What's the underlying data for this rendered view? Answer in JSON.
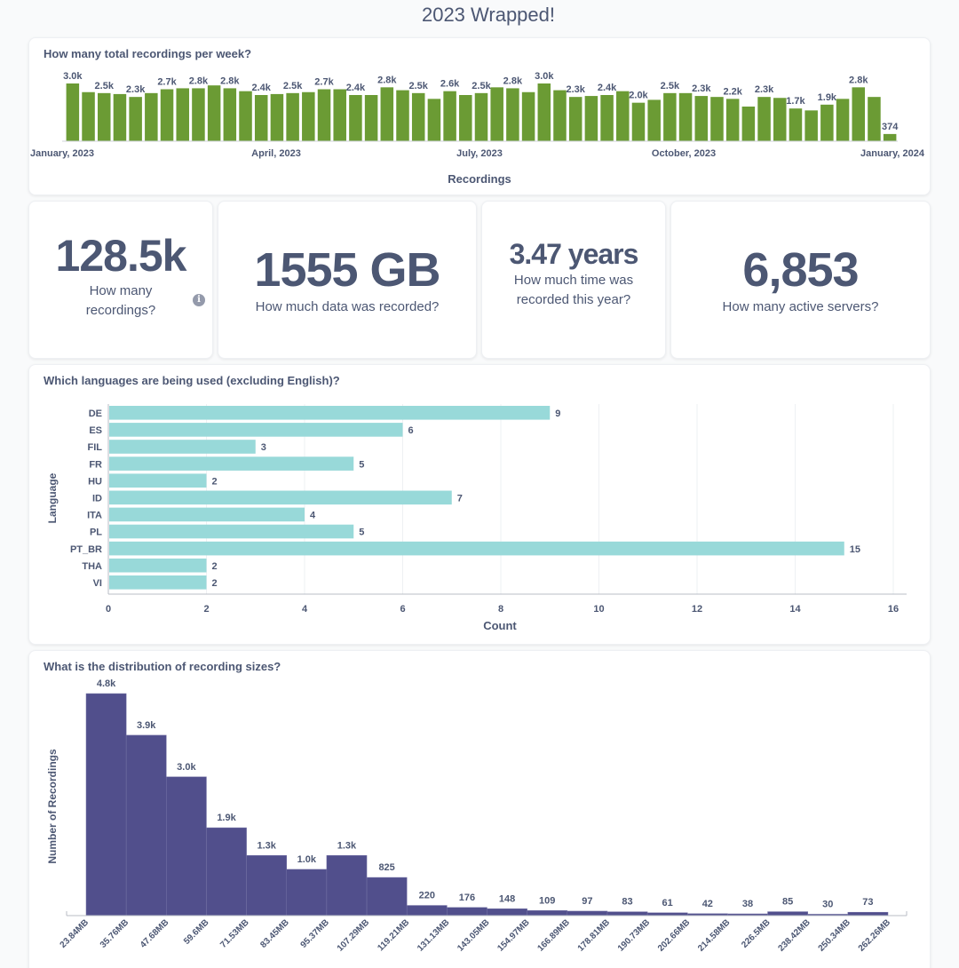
{
  "page": {
    "title": "2023 Wrapped!"
  },
  "colors": {
    "weekly": "#6b9b34",
    "languages": "#98d9d9",
    "sizes": "#514f8c",
    "text": "#4c5773"
  },
  "weekly_card": {
    "title": "How many total recordings per week?"
  },
  "stats": [
    {
      "value": "128.5k",
      "label_line1": "How many",
      "label_line2": "recordings?",
      "icon": "info-icon"
    },
    {
      "value": "1555 GB",
      "label_line1": "How much data was recorded?",
      "label_line2": ""
    },
    {
      "value": "3.47 years",
      "label_line1": "How much time was",
      "label_line2": "recorded this year?"
    },
    {
      "value": "6,853",
      "label_line1": "How many active servers?",
      "label_line2": ""
    }
  ],
  "languages_card": {
    "title": "Which languages are being used (excluding English)?"
  },
  "sizes_card": {
    "title": "What is the distribution of recording sizes?"
  },
  "chart_data": [
    {
      "type": "bar",
      "title": "How many total recordings per week?",
      "xlabel": "Recordings",
      "ylabel": "",
      "x_tick_labels": [
        "January, 2023",
        "April, 2023",
        "July, 2023",
        "October, 2023",
        "January, 2024"
      ],
      "values": [
        3000,
        2550,
        2500,
        2450,
        2300,
        2500,
        2700,
        2750,
        2750,
        2900,
        2750,
        2600,
        2400,
        2450,
        2500,
        2550,
        2700,
        2700,
        2400,
        2400,
        2800,
        2650,
        2500,
        2200,
        2600,
        2400,
        2500,
        2800,
        2750,
        2550,
        3000,
        2650,
        2300,
        2350,
        2400,
        2600,
        2000,
        2150,
        2500,
        2500,
        2350,
        2300,
        2200,
        1800,
        2300,
        2250,
        1700,
        1600,
        1900,
        2200,
        2800,
        2300,
        374
      ],
      "data_labels": [
        "3.0k",
        "",
        "2.5k",
        "",
        "2.3k",
        "",
        "2.7k",
        "",
        "2.8k",
        "",
        "2.8k",
        "",
        "2.4k",
        "",
        "2.5k",
        "",
        "2.7k",
        "",
        "2.4k",
        "",
        "2.8k",
        "",
        "2.5k",
        "",
        "2.6k",
        "",
        "2.5k",
        "",
        "2.8k",
        "",
        "3.0k",
        "",
        "2.3k",
        "",
        "2.4k",
        "",
        "2.0k",
        "",
        "2.5k",
        "",
        "2.3k",
        "",
        "2.2k",
        "",
        "2.3k",
        "",
        "1.7k",
        "",
        "1.9k",
        "",
        "2.8k",
        "",
        "374"
      ],
      "ylim": [
        0,
        3000
      ],
      "grid": false
    },
    {
      "type": "bar",
      "orientation": "horizontal",
      "title": "Which languages are being used (excluding English)?",
      "xlabel": "Count",
      "ylabel": "Language",
      "categories": [
        "DE",
        "ES",
        "FIL",
        "FR",
        "HU",
        "ID",
        "ITA",
        "PL",
        "PT_BR",
        "THA",
        "VI"
      ],
      "values": [
        9,
        6,
        3,
        5,
        2,
        7,
        4,
        5,
        15,
        2,
        2
      ],
      "x_ticks": [
        "0",
        "2",
        "4",
        "6",
        "8",
        "10",
        "12",
        "14",
        "16"
      ],
      "xlim": [
        0,
        16
      ],
      "grid": true
    },
    {
      "type": "bar",
      "subtype": "histogram",
      "title": "What is the distribution of recording sizes?",
      "xlabel": "",
      "ylabel": "Number of Recordings",
      "bin_edges": [
        "23.84MB",
        "35.76MB",
        "47.68MB",
        "59.6MB",
        "71.53MB",
        "83.45MB",
        "95.37MB",
        "107.29MB",
        "119.21MB",
        "131.13MB",
        "143.05MB",
        "154.97MB",
        "166.89MB",
        "178.81MB",
        "190.73MB",
        "202.66MB",
        "214.58MB",
        "226.5MB",
        "238.42MB",
        "250.34MB",
        "262.26MB"
      ],
      "values": [
        4800,
        3900,
        3000,
        1900,
        1300,
        1000,
        1300,
        825,
        220,
        176,
        148,
        109,
        97,
        83,
        61,
        42,
        38,
        85,
        30,
        73
      ],
      "data_labels": [
        "4.8k",
        "3.9k",
        "3.0k",
        "1.9k",
        "1.3k",
        "1.0k",
        "1.3k",
        "825",
        "220",
        "176",
        "148",
        "109",
        "97",
        "83",
        "61",
        "42",
        "38",
        "85",
        "30",
        "73"
      ],
      "ylim": [
        0,
        4800
      ],
      "grid": false
    }
  ]
}
